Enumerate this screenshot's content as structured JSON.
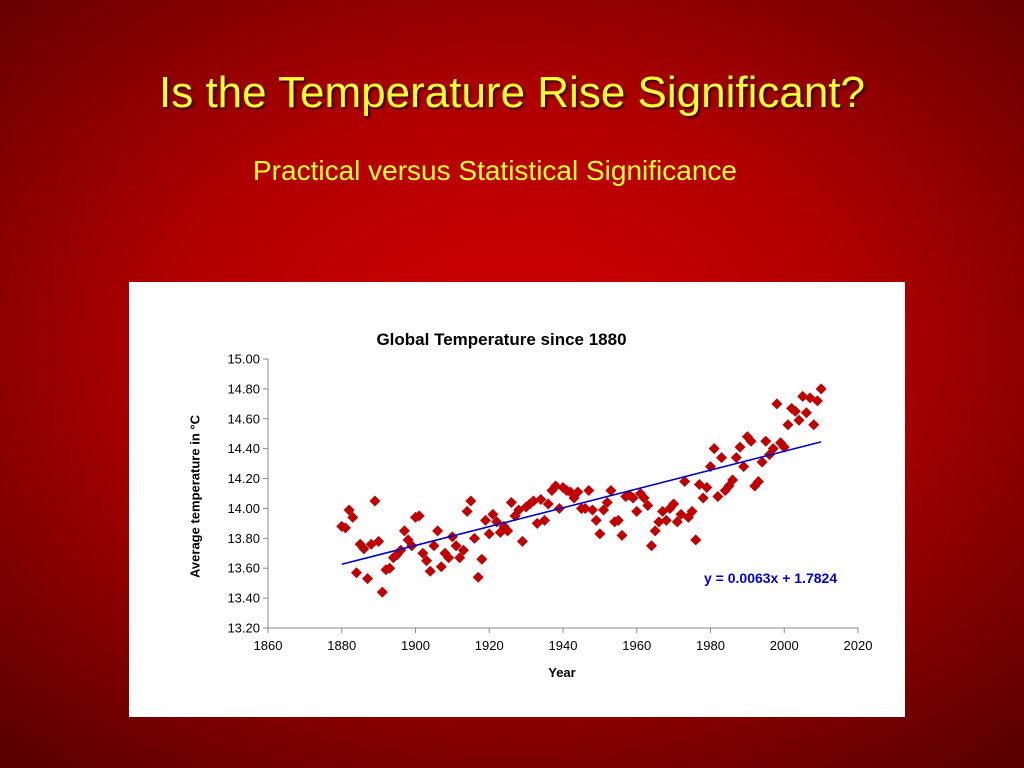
{
  "slide": {
    "title": "Is the Temperature Rise Significant?",
    "subtitle": "Practical versus Statistical Significance"
  },
  "colors": {
    "background": "#c80000",
    "title_text": "#ffff33",
    "marker": "#c00000",
    "trendline": "#0000cc",
    "equation_text": "#0000cc"
  },
  "chart_data": {
    "type": "scatter",
    "title": "Global Temperature since 1880",
    "xlabel": "Year",
    "ylabel": "Average temperature in °C",
    "xlim": [
      1860,
      2020
    ],
    "ylim": [
      13.2,
      15.0
    ],
    "xticks": [
      "1860",
      "1880",
      "1900",
      "1920",
      "1940",
      "1960",
      "1980",
      "2000",
      "2020"
    ],
    "yticks": [
      "13.20",
      "13.40",
      "13.60",
      "13.80",
      "14.00",
      "14.20",
      "14.40",
      "14.60",
      "14.80",
      "15.00"
    ],
    "grid": false,
    "marker": "diamond",
    "series": [
      {
        "x": [
          1880,
          1881,
          1882,
          1883,
          1884,
          1885,
          1886,
          1887,
          1888,
          1889,
          1890,
          1891,
          1892,
          1893,
          1894,
          1895,
          1896,
          1897,
          1898,
          1899,
          1900,
          1901,
          1902,
          1903,
          1904,
          1905,
          1906,
          1907,
          1908,
          1909,
          1910,
          1911,
          1912,
          1913,
          1914,
          1915,
          1916,
          1917,
          1918,
          1919,
          1920,
          1921,
          1922,
          1923,
          1924,
          1925,
          1926,
          1927,
          1928,
          1929,
          1930,
          1931,
          1932,
          1933,
          1934,
          1935,
          1936,
          1937,
          1938,
          1939,
          1940,
          1941,
          1942,
          1943,
          1944,
          1945,
          1946,
          1947,
          1948,
          1949,
          1950,
          1951,
          1952,
          1953,
          1954,
          1955,
          1956,
          1957,
          1958,
          1959,
          1960,
          1961,
          1962,
          1963,
          1964,
          1965,
          1966,
          1967,
          1968,
          1969,
          1970,
          1971,
          1972,
          1973,
          1974,
          1975,
          1976,
          1977,
          1978,
          1979,
          1980,
          1981,
          1982,
          1983,
          1984,
          1985,
          1986,
          1987,
          1988,
          1989,
          1990,
          1991,
          1992,
          1993,
          1994,
          1995,
          1996,
          1997,
          1998,
          1999,
          2000,
          2001,
          2002,
          2003,
          2004,
          2005,
          2006,
          2007,
          2008,
          2009,
          2010
        ],
        "y": [
          13.88,
          13.87,
          13.99,
          13.94,
          13.57,
          13.76,
          13.73,
          13.53,
          13.76,
          14.05,
          13.78,
          13.44,
          13.59,
          13.6,
          13.67,
          13.69,
          13.72,
          13.85,
          13.79,
          13.75,
          13.94,
          13.95,
          13.7,
          13.65,
          13.58,
          13.75,
          13.85,
          13.61,
          13.7,
          13.67,
          13.81,
          13.75,
          13.67,
          13.72,
          13.98,
          14.05,
          13.8,
          13.54,
          13.66,
          13.92,
          13.83,
          13.96,
          13.91,
          13.84,
          13.88,
          13.85,
          14.04,
          13.95,
          13.99,
          13.78,
          14.01,
          14.03,
          14.05,
          13.9,
          14.06,
          13.92,
          14.03,
          14.12,
          14.15,
          14.0,
          14.14,
          14.12,
          14.11,
          14.07,
          14.11,
          14.0,
          14.0,
          14.12,
          13.99,
          13.92,
          13.83,
          13.99,
          14.04,
          14.12,
          13.91,
          13.92,
          13.82,
          14.08,
          14.09,
          14.07,
          13.98,
          14.1,
          14.07,
          14.02,
          13.75,
          13.85,
          13.91,
          13.98,
          13.92,
          14.0,
          14.03,
          13.91,
          13.96,
          14.18,
          13.94,
          13.98,
          13.79,
          14.16,
          14.07,
          14.14,
          14.28,
          14.4,
          14.08,
          14.34,
          14.12,
          14.15,
          14.19,
          14.34,
          14.41,
          14.28,
          14.48,
          14.45,
          14.15,
          14.18,
          14.31,
          14.45,
          14.36,
          14.4,
          14.7,
          14.44,
          14.41,
          14.56,
          14.67,
          14.65,
          14.59,
          14.75,
          14.64,
          14.74,
          14.56,
          14.72,
          14.8
        ]
      }
    ],
    "trendline": {
      "equation": "y = 0.0063x + 1.7824",
      "slope": 0.0063,
      "intercept": 1.7824,
      "x_range": [
        1880,
        2010
      ]
    }
  }
}
